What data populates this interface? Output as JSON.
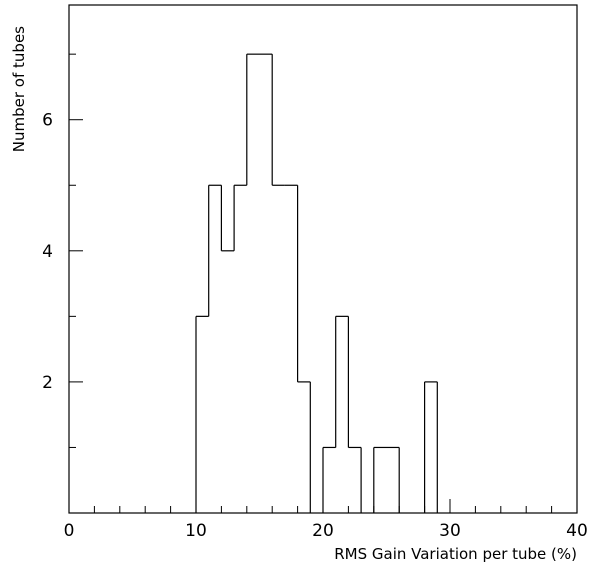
{
  "chart_data": {
    "type": "bar",
    "style": "step-histogram",
    "title": "",
    "xlabel": "RMS Gain Variation per tube (%)",
    "ylabel": "Number of tubes",
    "xlim": [
      0,
      40
    ],
    "ylim": [
      0,
      7.75
    ],
    "bin_width": 1,
    "x_ticks": [
      0,
      10,
      20,
      30,
      40
    ],
    "y_ticks": [
      2,
      4,
      6
    ],
    "x_minor_step": 2,
    "y_minor_step": 1,
    "grid": false,
    "bins": [
      {
        "x": 10,
        "count": 3
      },
      {
        "x": 11,
        "count": 5
      },
      {
        "x": 12,
        "count": 4
      },
      {
        "x": 13,
        "count": 5
      },
      {
        "x": 14,
        "count": 7
      },
      {
        "x": 15,
        "count": 7
      },
      {
        "x": 16,
        "count": 5
      },
      {
        "x": 17,
        "count": 5
      },
      {
        "x": 18,
        "count": 2
      },
      {
        "x": 19,
        "count": 0
      },
      {
        "x": 20,
        "count": 1
      },
      {
        "x": 21,
        "count": 3
      },
      {
        "x": 22,
        "count": 1
      },
      {
        "x": 23,
        "count": 0
      },
      {
        "x": 24,
        "count": 1
      },
      {
        "x": 25,
        "count": 1
      },
      {
        "x": 26,
        "count": 0
      },
      {
        "x": 27,
        "count": 0
      },
      {
        "x": 28,
        "count": 2
      }
    ],
    "line_color": "#000000"
  }
}
